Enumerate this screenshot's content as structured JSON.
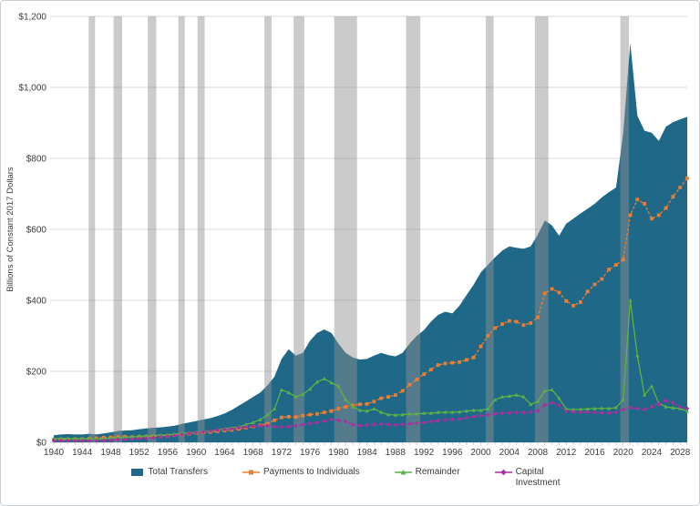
{
  "chart_data": {
    "type": "area",
    "title": "",
    "ylabel": "Billions of Constant 2017 Dollars",
    "ylim": [
      0,
      1200
    ],
    "yticks": [
      {
        "value": 0,
        "label": "$0"
      },
      {
        "value": 200,
        "label": "$200"
      },
      {
        "value": 400,
        "label": "$400"
      },
      {
        "value": 600,
        "label": "$600"
      },
      {
        "value": 800,
        "label": "$800"
      },
      {
        "value": 1000,
        "label": "$1,000"
      },
      {
        "value": 1200,
        "label": "$1,200"
      }
    ],
    "x_range": [
      1940,
      2029
    ],
    "xtick_interval": 4,
    "grid_color": "#d9d9d9",
    "axis_color": "#bfbfbf",
    "text_color": "#3b3b3b",
    "recession_color": "#919191",
    "recession_opacity": 0.47,
    "recessions": [
      [
        1944.9,
        1945.8
      ],
      [
        1948.4,
        1949.6
      ],
      [
        1953.2,
        1954.4
      ],
      [
        1957.5,
        1958.4
      ],
      [
        1960.2,
        1961.2
      ],
      [
        1969.6,
        1970.6
      ],
      [
        1973.7,
        1975.2
      ],
      [
        1979.4,
        1982.6
      ],
      [
        1989.5,
        1991.5
      ],
      [
        2000.7,
        2001.8
      ],
      [
        2007.6,
        2009.5
      ],
      [
        2019.6,
        2020.8
      ]
    ],
    "series": [
      {
        "name": "Total Transfers",
        "type": "area",
        "color": "#1f6887",
        "marker": "none",
        "values": [
          20,
          22,
          23,
          22,
          22,
          24,
          22,
          25,
          28,
          32,
          33,
          34,
          37,
          39,
          41,
          42,
          44,
          47,
          52,
          56,
          60,
          64,
          68,
          74,
          81,
          91,
          103,
          115,
          128,
          140,
          160,
          185,
          235,
          262,
          244,
          252,
          286,
          308,
          318,
          308,
          278,
          252,
          239,
          233,
          235,
          244,
          252,
          246,
          242,
          252,
          278,
          300,
          316,
          340,
          359,
          368,
          363,
          385,
          415,
          444,
          479,
          500,
          521,
          540,
          552,
          548,
          545,
          552,
          585,
          625,
          611,
          582,
          616,
          630,
          645,
          658,
          672,
          690,
          705,
          718,
          870,
          1125,
          920,
          878,
          872,
          849,
          889,
          902,
          910,
          917
        ]
      },
      {
        "name": "Payments to Individuals",
        "type": "line",
        "color": "#ed7d31",
        "marker": "square",
        "dash": "3,2",
        "values": [
          8,
          8,
          8,
          9,
          9,
          10,
          12,
          13,
          14,
          15,
          16,
          15,
          16,
          16,
          17,
          17,
          18,
          20,
          22,
          24,
          26,
          28,
          29,
          31,
          33,
          35,
          38,
          41,
          44,
          48,
          52,
          62,
          70,
          72,
          71,
          75,
          78,
          80,
          84,
          88,
          95,
          100,
          104,
          107,
          108,
          115,
          124,
          128,
          133,
          145,
          162,
          177,
          192,
          205,
          218,
          222,
          224,
          226,
          232,
          239,
          270,
          300,
          322,
          333,
          342,
          340,
          330,
          336,
          352,
          420,
          432,
          422,
          398,
          385,
          395,
          425,
          445,
          460,
          487,
          500,
          515,
          640,
          684,
          672,
          630,
          640,
          660,
          692,
          718,
          744
        ]
      },
      {
        "name": "Remainder",
        "type": "line",
        "color": "#5cb246",
        "marker": "triangle",
        "dash": "",
        "values": [
          10,
          11,
          11,
          10,
          10,
          11,
          9,
          10,
          12,
          13,
          14,
          15,
          17,
          18,
          19,
          20,
          21,
          23,
          25,
          27,
          28,
          30,
          32,
          35,
          38,
          41,
          43,
          50,
          56,
          64,
          77,
          94,
          148,
          140,
          128,
          135,
          150,
          170,
          179,
          168,
          158,
          120,
          100,
          90,
          88,
          94,
          85,
          78,
          77,
          78,
          80,
          80,
          82,
          82,
          84,
          85,
          85,
          86,
          88,
          90,
          90,
          94,
          120,
          128,
          130,
          133,
          128,
          107,
          115,
          145,
          148,
          124,
          94,
          92,
          93,
          94,
          95,
          96,
          95,
          98,
          120,
          400,
          244,
          133,
          158,
          110,
          100,
          97,
          95,
          88
        ]
      },
      {
        "name": "Capital Investment",
        "type": "line",
        "color": "#b02da0",
        "marker": "diamond",
        "dash": "3,2",
        "values": [
          5,
          5,
          4,
          4,
          4,
          4,
          4,
          5,
          6,
          8,
          8,
          9,
          10,
          11,
          13,
          15,
          17,
          19,
          22,
          25,
          27,
          29,
          32,
          34,
          36,
          38,
          41,
          43,
          45,
          46,
          47,
          44,
          43,
          44,
          47,
          50,
          53,
          56,
          60,
          64,
          62,
          58,
          50,
          47,
          48,
          50,
          52,
          50,
          49,
          50,
          52,
          54,
          56,
          58,
          61,
          63,
          64,
          66,
          69,
          72,
          75,
          77,
          80,
          82,
          83,
          84,
          84,
          85,
          88,
          105,
          111,
          105,
          88,
          86,
          85,
          85,
          84,
          83,
          82,
          85,
          92,
          98,
          95,
          92,
          100,
          108,
          118,
          112,
          100,
          95
        ]
      }
    ]
  }
}
